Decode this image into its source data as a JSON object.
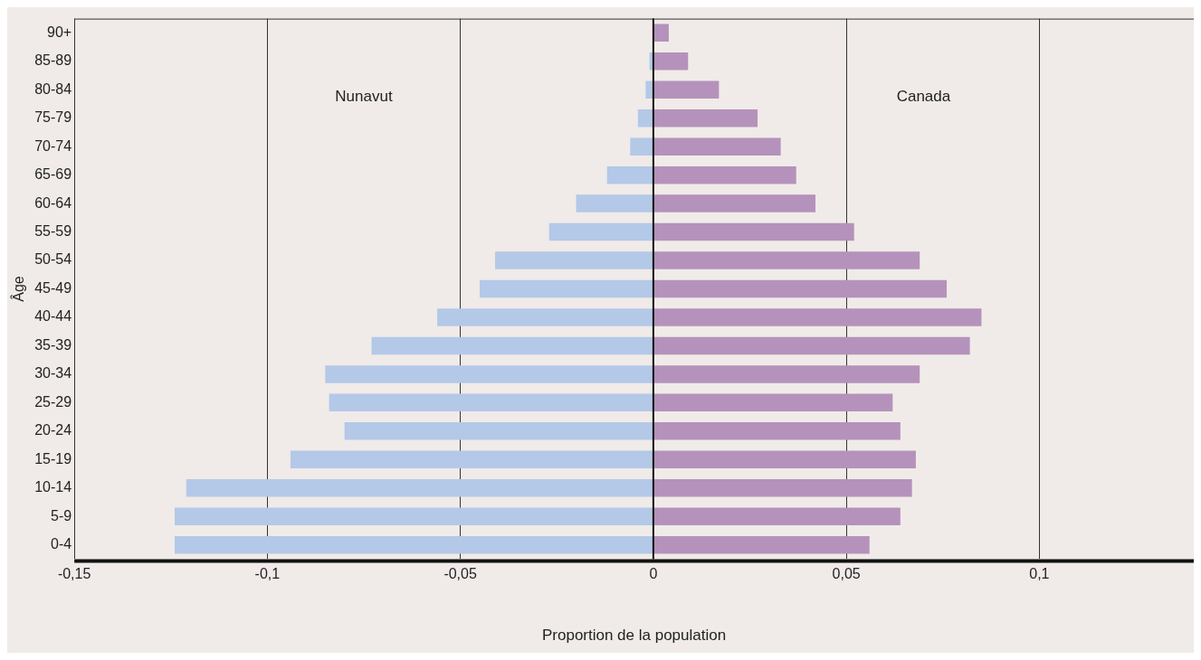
{
  "chart_data": {
    "type": "bar",
    "orientation": "horizontal",
    "stacked": true,
    "xlabel": "Proportion de la population",
    "ylabel": "Âge",
    "categories": [
      "90+",
      "85-89",
      "80-84",
      "75-79",
      "70-74",
      "65-69",
      "60-64",
      "55-59",
      "50-54",
      "45-49",
      "40-44",
      "35-39",
      "30-34",
      "25-29",
      "20-24",
      "15-19",
      "10-14",
      "5-9",
      "0-4"
    ],
    "series": [
      {
        "name": "Nunavut",
        "color": "#b4c8e8",
        "values": [
          0,
          -0.001,
          -0.002,
          -0.004,
          -0.006,
          -0.012,
          -0.02,
          -0.027,
          -0.041,
          -0.045,
          -0.056,
          -0.073,
          -0.085,
          -0.084,
          -0.08,
          -0.094,
          -0.121,
          -0.124,
          -0.124
        ]
      },
      {
        "name": "Canada",
        "color": "#b592bb",
        "values": [
          0.004,
          0.009,
          0.017,
          0.027,
          0.033,
          0.037,
          0.042,
          0.052,
          0.069,
          0.076,
          0.085,
          0.082,
          0.069,
          0.062,
          0.064,
          0.068,
          0.067,
          0.064,
          0.056
        ]
      }
    ],
    "xlim": [
      -0.15,
      0.14
    ],
    "xticks": [
      {
        "value": -0.15,
        "label": "-0,15"
      },
      {
        "value": -0.1,
        "label": "-0,1"
      },
      {
        "value": -0.05,
        "label": "-0,05"
      },
      0,
      {
        "value": 0.05,
        "label": "0,05"
      },
      {
        "value": 0.1,
        "label": "0,1"
      }
    ],
    "grid": "x",
    "legend": false
  }
}
